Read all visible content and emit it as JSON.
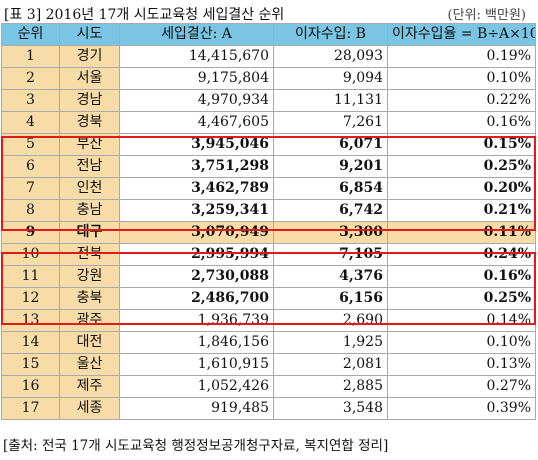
{
  "title": "[표 3] 2016년 17개 시도교육청 세입결산 순위",
  "unit": "(단위: 백만원)",
  "columns": [
    "순위",
    "시도",
    "세입결산: A",
    "이자수입: B",
    "이자수입율 = B÷A×100"
  ],
  "rows": [
    {
      "rank": "1",
      "region": "경기",
      "revenue": "14,415,670",
      "interest": "28,093",
      "rate": "0.19%"
    },
    {
      "rank": "2",
      "region": "서울",
      "revenue": "9,175,804",
      "interest": "9,094",
      "rate": "0.10%"
    },
    {
      "rank": "3",
      "region": "경남",
      "revenue": "4,970,934",
      "interest": "11,131",
      "rate": "0.22%"
    },
    {
      "rank": "4",
      "region": "경북",
      "revenue": "4,467,605",
      "interest": "7,261",
      "rate": "0.16%"
    },
    {
      "rank": "5",
      "region": "부산",
      "revenue": "3,945,046",
      "interest": "6,071",
      "rate": "0.15%"
    },
    {
      "rank": "6",
      "region": "전남",
      "revenue": "3,751,298",
      "interest": "9,201",
      "rate": "0.25%"
    },
    {
      "rank": "7",
      "region": "인천",
      "revenue": "3,462,789",
      "interest": "6,854",
      "rate": "0.20%"
    },
    {
      "rank": "8",
      "region": "충남",
      "revenue": "3,259,341",
      "interest": "6,742",
      "rate": "0.21%"
    },
    {
      "rank": "9",
      "region": "대구",
      "revenue": "3,070,949",
      "interest": "3,300",
      "rate": "0.11%"
    },
    {
      "rank": "10",
      "region": "전북",
      "revenue": "2,995,994",
      "interest": "7,105",
      "rate": "0.24%"
    },
    {
      "rank": "11",
      "region": "강원",
      "revenue": "2,730,088",
      "interest": "4,376",
      "rate": "0.16%"
    },
    {
      "rank": "12",
      "region": "충북",
      "revenue": "2,486,700",
      "interest": "6,156",
      "rate": "0.25%"
    },
    {
      "rank": "13",
      "region": "광주",
      "revenue": "1,936,739",
      "interest": "2,690",
      "rate": "0.14%"
    },
    {
      "rank": "14",
      "region": "대전",
      "revenue": "1,846,156",
      "interest": "1,925",
      "rate": "0.10%"
    },
    {
      "rank": "15",
      "region": "울산",
      "revenue": "1,610,915",
      "interest": "2,081",
      "rate": "0.13%"
    },
    {
      "rank": "16",
      "region": "제주",
      "revenue": "1,052,426",
      "interest": "2,885",
      "rate": "0.27%"
    },
    {
      "rank": "17",
      "region": "세종",
      "revenue": "919,485",
      "interest": "3,548",
      "rate": "0.39%"
    }
  ],
  "source": "[출처: 전국 17개 시도교육청 행정정보공개청구자료, 복지연합 정리]",
  "colors": {
    "header": "#79c5e3",
    "label_cells": "#f7dca8",
    "highlight_box": "#e01a1a"
  }
}
